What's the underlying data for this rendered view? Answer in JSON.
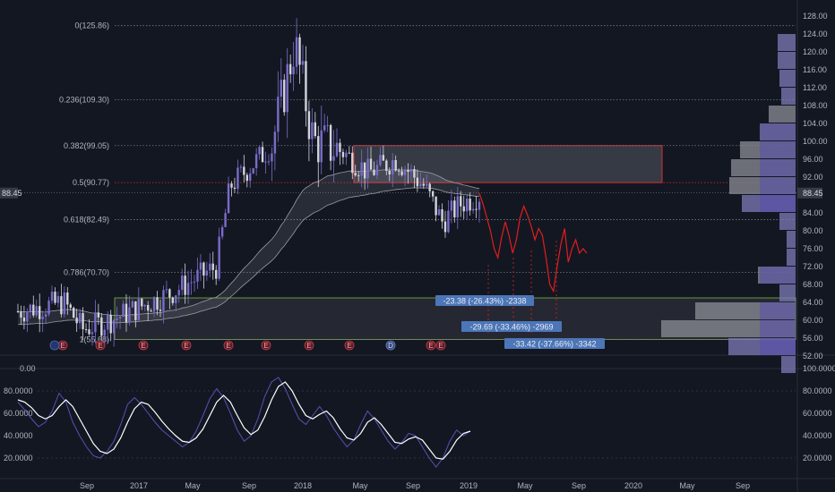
{
  "colors": {
    "background": "#131722",
    "up": "#7a6cc9",
    "down": "#d1d4dc",
    "projection": "#e01e1e",
    "fib_line": "#787b86",
    "fib_red": "#d32f2f",
    "zone_box_border": "#d32f2f",
    "lower_zone_border": "#7cb342",
    "osc_fast": "#5b4fb4",
    "osc_slow": "#ffffff",
    "volume_profile_high": "#7e7bb8",
    "volume_profile_low": "#8b8e95"
  },
  "chart_data": [
    {
      "type": "candlestick",
      "price_axis": {
        "ticks": [
          "128.00",
          "124.00",
          "120.00",
          "116.00",
          "112.00",
          "108.00",
          "104.00",
          "100.00",
          "96.00",
          "92.00",
          "88.45",
          "84.00",
          "80.00",
          "76.00",
          "72.00",
          "68.00",
          "64.00",
          "60.00",
          "56.00",
          "52.00"
        ],
        "range": [
          52,
          128
        ]
      },
      "current_price": "88.45",
      "fibonacci": [
        {
          "label": "0(125.86)",
          "value": 125.86
        },
        {
          "label": "0.236(109.30)",
          "value": 109.3
        },
        {
          "label": "0.382(99.05)",
          "value": 99.05
        },
        {
          "label": "0.5(90.77)",
          "value": 90.77
        },
        {
          "label": "0.618(82.49)",
          "value": 82.49
        },
        {
          "label": "0.786(70.70)",
          "value": 70.7
        },
        {
          "label": "1(55.68)",
          "value": 55.68
        }
      ],
      "measurements": [
        "-23.38 (-26.43%) -2338",
        "-29.69 (-33.46%) -2969",
        "-33.42 (-37.66%) -3342"
      ],
      "event_markers": [
        "E",
        "E",
        "E",
        "E",
        "E",
        "E",
        "E",
        "E",
        "D",
        "E",
        "E"
      ],
      "zones": [
        {
          "name": "resistance-zone",
          "low": 90.77,
          "high": 99.05
        },
        {
          "name": "support-zone",
          "low": 55.68,
          "high": 65.0
        }
      ],
      "projection_path": [
        88.4,
        86.0,
        83.0,
        80.0,
        76.0,
        74.0,
        78.5,
        82.0,
        79.0,
        75.0,
        78.0,
        83.0,
        85.5,
        83.5,
        81.0,
        78.0,
        80.5,
        79.0,
        74.0,
        68.0,
        66.5,
        72.0,
        77.0,
        80.5,
        73.0,
        76.0,
        78.0,
        75.0,
        76.0,
        75.0
      ]
    },
    {
      "type": "line",
      "name": "oscillator",
      "y_axis": {
        "ticks": [
          "100.0000",
          "80.0000",
          "60.0000",
          "40.0000",
          "20.0000"
        ],
        "range": [
          0,
          100
        ]
      },
      "series_fast": [
        70,
        63,
        55,
        48,
        52,
        62,
        78,
        70,
        52,
        40,
        30,
        22,
        20,
        26,
        35,
        50,
        68,
        74,
        68,
        60,
        52,
        45,
        40,
        35,
        30,
        34,
        44,
        58,
        73,
        82,
        74,
        60,
        45,
        35,
        40,
        55,
        75,
        88,
        92,
        82,
        68,
        55,
        50,
        58,
        66,
        58,
        47,
        38,
        30,
        36,
        50,
        62,
        55,
        45,
        35,
        28,
        34,
        42,
        40,
        30,
        20,
        12,
        20,
        35,
        45,
        40,
        44
      ],
      "series_slow": [
        72,
        70,
        65,
        58,
        55,
        58,
        66,
        72,
        66,
        55,
        44,
        33,
        26,
        24,
        28,
        38,
        52,
        64,
        70,
        68,
        61,
        53,
        46,
        40,
        35,
        34,
        38,
        46,
        58,
        70,
        76,
        70,
        58,
        47,
        41,
        45,
        57,
        72,
        84,
        88,
        80,
        68,
        58,
        55,
        59,
        62,
        56,
        46,
        38,
        36,
        42,
        52,
        56,
        50,
        42,
        34,
        33,
        37,
        39,
        36,
        28,
        20,
        19,
        26,
        36,
        42,
        44
      ]
    }
  ],
  "time_axis": [
    "Sep",
    "2017",
    "May",
    "Sep",
    "2018",
    "May",
    "Sep",
    "2019",
    "May",
    "Sep",
    "2020",
    "May",
    "Sep"
  ]
}
